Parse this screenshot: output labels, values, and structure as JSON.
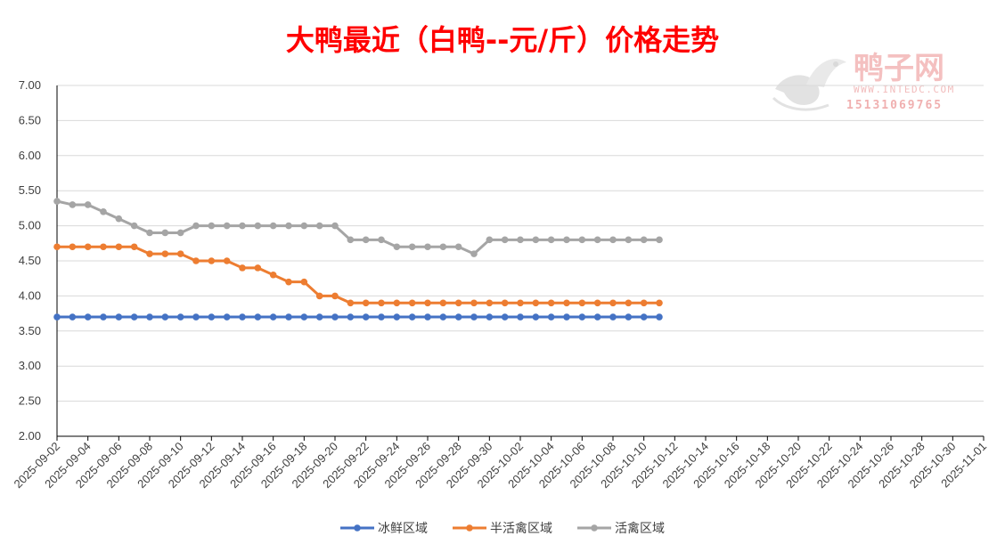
{
  "watermark": {
    "brand": "鸭子网",
    "url": "WWW.INTEDC.COM",
    "phone": "15131069765"
  },
  "chart_data": {
    "type": "line",
    "title": "大鸭最近（白鸭--元/斤）价格走势",
    "xlabel": "",
    "ylabel": "",
    "ylim": [
      2.0,
      7.0
    ],
    "yticks": [
      "2.00",
      "2.50",
      "3.00",
      "3.50",
      "4.00",
      "4.50",
      "5.00",
      "5.50",
      "6.00",
      "6.50",
      "7.00"
    ],
    "x_range": [
      "2025-09-02",
      "2025-11-01"
    ],
    "xticks": [
      "2025-09-02",
      "2025-09-04",
      "2025-09-06",
      "2025-09-08",
      "2025-09-10",
      "2025-09-12",
      "2025-09-14",
      "2025-09-16",
      "2025-09-18",
      "2025-09-20",
      "2025-09-22",
      "2025-09-24",
      "2025-09-26",
      "2025-09-28",
      "2025-09-30",
      "2025-10-02",
      "2025-10-04",
      "2025-10-06",
      "2025-10-08",
      "2025-10-10",
      "2025-10-12",
      "2025-10-14",
      "2025-10-16",
      "2025-10-18",
      "2025-10-20",
      "2025-10-22",
      "2025-10-24",
      "2025-10-26",
      "2025-10-28",
      "2025-10-30",
      "2025-11-01"
    ],
    "x": [
      "2025-09-02",
      "2025-09-03",
      "2025-09-04",
      "2025-09-05",
      "2025-09-06",
      "2025-09-07",
      "2025-09-08",
      "2025-09-09",
      "2025-09-10",
      "2025-09-11",
      "2025-09-12",
      "2025-09-13",
      "2025-09-14",
      "2025-09-15",
      "2025-09-16",
      "2025-09-17",
      "2025-09-18",
      "2025-09-19",
      "2025-09-20",
      "2025-09-21",
      "2025-09-22",
      "2025-09-23",
      "2025-09-24",
      "2025-09-25",
      "2025-09-26",
      "2025-09-27",
      "2025-09-28",
      "2025-09-29",
      "2025-09-30",
      "2025-10-01",
      "2025-10-02",
      "2025-10-03",
      "2025-10-04",
      "2025-10-05",
      "2025-10-06",
      "2025-10-07",
      "2025-10-08",
      "2025-10-09",
      "2025-10-10",
      "2025-10-11"
    ],
    "grid": true,
    "legend": "bottom",
    "series": [
      {
        "name": "冰鲜区域",
        "color": "#4472c4",
        "values": [
          3.7,
          3.7,
          3.7,
          3.7,
          3.7,
          3.7,
          3.7,
          3.7,
          3.7,
          3.7,
          3.7,
          3.7,
          3.7,
          3.7,
          3.7,
          3.7,
          3.7,
          3.7,
          3.7,
          3.7,
          3.7,
          3.7,
          3.7,
          3.7,
          3.7,
          3.7,
          3.7,
          3.7,
          3.7,
          3.7,
          3.7,
          3.7,
          3.7,
          3.7,
          3.7,
          3.7,
          3.7,
          3.7,
          3.7,
          3.7
        ]
      },
      {
        "name": "半活禽区域",
        "color": "#ed7d31",
        "values": [
          4.7,
          4.7,
          4.7,
          4.7,
          4.7,
          4.7,
          4.6,
          4.6,
          4.6,
          4.5,
          4.5,
          4.5,
          4.4,
          4.4,
          4.3,
          4.2,
          4.2,
          4.0,
          4.0,
          3.9,
          3.9,
          3.9,
          3.9,
          3.9,
          3.9,
          3.9,
          3.9,
          3.9,
          3.9,
          3.9,
          3.9,
          3.9,
          3.9,
          3.9,
          3.9,
          3.9,
          3.9,
          3.9,
          3.9,
          3.9
        ]
      },
      {
        "name": "活禽区域",
        "color": "#a5a5a5",
        "values": [
          5.35,
          5.3,
          5.3,
          5.2,
          5.1,
          5.0,
          4.9,
          4.9,
          4.9,
          5.0,
          5.0,
          5.0,
          5.0,
          5.0,
          5.0,
          5.0,
          5.0,
          5.0,
          5.0,
          4.8,
          4.8,
          4.8,
          4.7,
          4.7,
          4.7,
          4.7,
          4.7,
          4.6,
          4.8,
          4.8,
          4.8,
          4.8,
          4.8,
          4.8,
          4.8,
          4.8,
          4.8,
          4.8,
          4.8,
          4.8
        ]
      }
    ]
  }
}
